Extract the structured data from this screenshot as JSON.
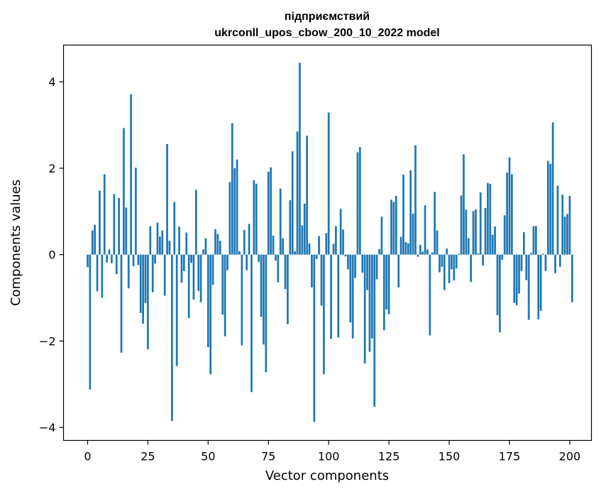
{
  "chart_data": {
    "type": "bar",
    "title_line1": "підприємствий",
    "title_line2": "ukrconll_upos_cbow_200_10_2022 model",
    "xlabel": "Vector components",
    "ylabel": "Components values",
    "xlim": [
      -10,
      209
    ],
    "ylim": [
      -4.3,
      4.85
    ],
    "xticks": [
      0,
      25,
      50,
      75,
      100,
      125,
      150,
      175,
      200
    ],
    "yticks": [
      -4,
      -2,
      0,
      2,
      4
    ],
    "ytick_labels": [
      "−4",
      "−2",
      "0",
      "2",
      "4"
    ],
    "bar_color": "#1f77b4",
    "grid": false,
    "values": [
      -0.29,
      -3.12,
      0.56,
      0.69,
      -0.85,
      1.48,
      -1.0,
      1.86,
      -0.18,
      0.12,
      -0.2,
      1.4,
      -0.45,
      1.31,
      -2.27,
      2.93,
      1.09,
      -0.78,
      3.71,
      -0.27,
      2.01,
      -0.24,
      -1.35,
      -1.6,
      -1.12,
      -2.19,
      0.66,
      -0.87,
      -0.21,
      0.74,
      0.42,
      0.56,
      -0.95,
      2.56,
      0.32,
      -3.85,
      1.22,
      -2.58,
      0.65,
      -0.65,
      -0.38,
      0.51,
      -1.47,
      -0.19,
      -1.04,
      1.5,
      -0.84,
      -1.1,
      0.12,
      0.38,
      -2.14,
      -2.77,
      -0.7,
      0.59,
      0.48,
      0.32,
      -1.39,
      -1.89,
      -0.36,
      1.68,
      3.04,
      2.0,
      2.2,
      0.08,
      -2.1,
      0.57,
      -0.36,
      0.71,
      -3.18,
      1.72,
      1.64,
      -0.17,
      -1.44,
      -2.08,
      -2.72,
      1.92,
      2.02,
      0.44,
      -0.14,
      -0.64,
      1.53,
      0.38,
      -0.8,
      -1.61,
      1.26,
      2.39,
      0.08,
      2.85,
      4.44,
      0.68,
      1.18,
      2.75,
      0.26,
      -0.76,
      -3.87,
      -0.1,
      0.43,
      -1.18,
      -2.77,
      0.5,
      3.29,
      -1.95,
      0.25,
      0.66,
      -1.92,
      1.06,
      0.58,
      -0.04,
      -0.34,
      -1.57,
      -1.94,
      -0.54,
      2.37,
      2.49,
      -0.42,
      -2.52,
      -0.82,
      -2.25,
      -1.94,
      -3.52,
      -0.57,
      0.13,
      0.88,
      -1.75,
      -1.27,
      -1.38,
      1.27,
      1.22,
      1.36,
      -0.76,
      0.41,
      1.85,
      0.29,
      0.26,
      1.95,
      0.95,
      2.53,
      -0.05,
      0.23,
      0.07,
      1.14,
      0.12,
      -1.87,
      0.05,
      1.45,
      0.56,
      -0.41,
      -0.28,
      -0.82,
      0.14,
      -0.66,
      -0.34,
      -0.6,
      -0.32,
      0.02,
      1.37,
      2.32,
      1.04,
      0.38,
      -0.63,
      1.01,
      1.05,
      0.03,
      1.44,
      -0.25,
      1.08,
      1.66,
      1.64,
      0.46,
      0.65,
      -1.4,
      -1.8,
      -0.12,
      0.91,
      1.9,
      2.25,
      1.86,
      -1.12,
      -1.17,
      -0.9,
      -0.38,
      0.52,
      -0.59,
      -1.51,
      0.04,
      0.66,
      0.66,
      -1.5,
      -1.3,
      0.02,
      -0.38,
      2.17,
      2.1,
      3.06,
      -0.43,
      1.6,
      -0.28,
      1.39,
      0.88,
      0.94,
      1.36,
      -1.1
    ]
  }
}
